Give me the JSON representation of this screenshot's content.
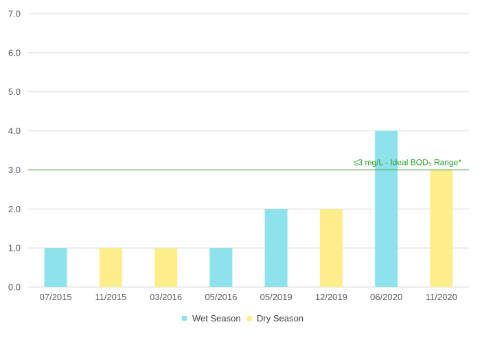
{
  "chart_data": {
    "type": "bar",
    "categories": [
      "07/2015",
      "11/2015",
      "03/2016",
      "05/2016",
      "05/2019",
      "12/2019",
      "06/2020",
      "11/2020"
    ],
    "values": [
      1.0,
      1.0,
      1.0,
      1.0,
      2.0,
      2.0,
      4.0,
      3.0
    ],
    "bar_series": [
      "Wet Season",
      "Dry Season",
      "Dry Season",
      "Wet Season",
      "Wet Season",
      "Dry Season",
      "Wet Season",
      "Dry Season"
    ],
    "series_names": [
      "Wet Season",
      "Dry Season"
    ],
    "colors": {
      "Wet Season": "#8de2ec",
      "Dry Season": "#fdee8b",
      "reference": "#2aa02a",
      "grid": "#d9d9d9"
    },
    "ylim": [
      0,
      7
    ],
    "yticks": [
      "0.0",
      "1.0",
      "2.0",
      "3.0",
      "4.0",
      "5.0",
      "6.0",
      "7.0"
    ],
    "reference_line": {
      "value": 3.0,
      "label": "≤3 mg/L - Ideal BOD₅ Range*"
    },
    "grid": true,
    "legend_position": "bottom",
    "title": "",
    "xlabel": "",
    "ylabel": ""
  }
}
